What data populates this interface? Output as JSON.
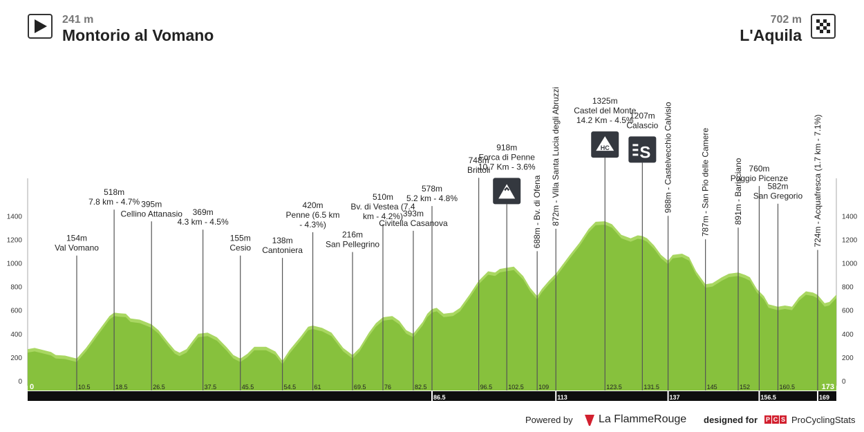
{
  "start": {
    "altitude": "241 m",
    "town": "Montorio al Vomano",
    "icon": "play-icon"
  },
  "finish": {
    "altitude": "702 m",
    "town": "L'Aquila",
    "icon": "checkered-flag-icon"
  },
  "footer": {
    "powered_by": "Powered by",
    "brand": "La FlammeRouge",
    "designed_for": "designed for",
    "pcs_badge": [
      "P",
      "C",
      "S"
    ],
    "pcs_name": "ProCyclingStats"
  },
  "colors": {
    "profile_dark": "#87c13d",
    "profile_light": "#a9d762",
    "bar": "#0e0e0e",
    "line": "#555555",
    "badge": "#34383f"
  },
  "chart_data": {
    "type": "area",
    "title": "",
    "xlabel": "",
    "ylabel": "",
    "xlim": [
      0,
      173
    ],
    "ylim": [
      0,
      1400
    ],
    "y_ticks": [
      0,
      200,
      400,
      600,
      800,
      1000,
      1200,
      1400
    ],
    "x_labels_left": {
      "value": 0,
      "text": "0"
    },
    "x_labels_right": {
      "value": 173,
      "text": "173"
    },
    "km_marks": [
      {
        "km": 10.5,
        "label": "10.5"
      },
      {
        "km": 18.5,
        "label": "18.5"
      },
      {
        "km": 26.5,
        "label": "26.5"
      },
      {
        "km": 37.5,
        "label": "37.5"
      },
      {
        "km": 45.5,
        "label": "45.5"
      },
      {
        "km": 54.5,
        "label": "54.5"
      },
      {
        "km": 61,
        "label": "61"
      },
      {
        "km": 69.5,
        "label": "69.5"
      },
      {
        "km": 76,
        "label": "76"
      },
      {
        "km": 82.5,
        "label": "82.5"
      },
      {
        "km": 96.5,
        "label": "96.5"
      },
      {
        "km": 102.5,
        "label": "102.5"
      },
      {
        "km": 109,
        "label": "109"
      },
      {
        "km": 123.5,
        "label": "123.5"
      },
      {
        "km": 131.5,
        "label": "131.5"
      },
      {
        "km": 145,
        "label": "145"
      },
      {
        "km": 152,
        "label": "152"
      },
      {
        "km": 160.5,
        "label": "160.5"
      }
    ],
    "bar_marks": [
      {
        "km": 86.5,
        "label": "86.5"
      },
      {
        "km": 113,
        "label": "113"
      },
      {
        "km": 137,
        "label": "137"
      },
      {
        "km": 156.5,
        "label": "156.5"
      },
      {
        "km": 169,
        "label": "169"
      }
    ],
    "profile": [
      [
        0,
        240
      ],
      [
        1.5,
        250
      ],
      [
        3,
        235
      ],
      [
        5,
        215
      ],
      [
        6,
        190
      ],
      [
        8,
        185
      ],
      [
        10.5,
        160
      ],
      [
        12.5,
        250
      ],
      [
        14.5,
        360
      ],
      [
        16,
        440
      ],
      [
        17.5,
        520
      ],
      [
        18.5,
        550
      ],
      [
        19.5,
        545
      ],
      [
        21,
        540
      ],
      [
        22,
        500
      ],
      [
        24,
        490
      ],
      [
        26.5,
        450
      ],
      [
        28,
        400
      ],
      [
        30,
        300
      ],
      [
        31.5,
        230
      ],
      [
        32.5,
        210
      ],
      [
        34,
        240
      ],
      [
        35.5,
        320
      ],
      [
        36.5,
        370
      ],
      [
        38.5,
        380
      ],
      [
        40.5,
        340
      ],
      [
        42.5,
        260
      ],
      [
        44,
        190
      ],
      [
        45.5,
        160
      ],
      [
        47,
        200
      ],
      [
        48.5,
        260
      ],
      [
        51,
        260
      ],
      [
        53,
        220
      ],
      [
        54.5,
        140
      ],
      [
        56,
        230
      ],
      [
        58.5,
        350
      ],
      [
        60,
        430
      ],
      [
        61,
        440
      ],
      [
        63,
        420
      ],
      [
        65,
        380
      ],
      [
        67.5,
        250
      ],
      [
        69.5,
        190
      ],
      [
        71,
        250
      ],
      [
        73,
        380
      ],
      [
        74.5,
        460
      ],
      [
        76,
        510
      ],
      [
        78,
        520
      ],
      [
        79.5,
        480
      ],
      [
        81,
        400
      ],
      [
        82.5,
        370
      ],
      [
        84.5,
        470
      ],
      [
        85.5,
        540
      ],
      [
        86.5,
        580
      ],
      [
        87.5,
        590
      ],
      [
        89,
        540
      ],
      [
        91,
        550
      ],
      [
        92.5,
        590
      ],
      [
        94.5,
        700
      ],
      [
        96.5,
        820
      ],
      [
        98.5,
        900
      ],
      [
        100,
        890
      ],
      [
        101,
        920
      ],
      [
        102.5,
        930
      ],
      [
        104,
        940
      ],
      [
        106,
        860
      ],
      [
        107.5,
        760
      ],
      [
        109,
        690
      ],
      [
        110,
        750
      ],
      [
        111.5,
        820
      ],
      [
        113,
        880
      ],
      [
        114.5,
        960
      ],
      [
        116,
        1040
      ],
      [
        118,
        1140
      ],
      [
        120,
        1260
      ],
      [
        121.5,
        1320
      ],
      [
        123.5,
        1325
      ],
      [
        125,
        1300
      ],
      [
        127,
        1210
      ],
      [
        129,
        1180
      ],
      [
        130.5,
        1205
      ],
      [
        131.5,
        1200
      ],
      [
        132.5,
        1180
      ],
      [
        134,
        1120
      ],
      [
        135.5,
        1040
      ],
      [
        137,
        990
      ],
      [
        138,
        1040
      ],
      [
        140,
        1050
      ],
      [
        141.5,
        1020
      ],
      [
        143,
        900
      ],
      [
        145,
        790
      ],
      [
        146.5,
        800
      ],
      [
        148.5,
        850
      ],
      [
        150,
        880
      ],
      [
        152,
        890
      ],
      [
        153.5,
        870
      ],
      [
        154.5,
        850
      ],
      [
        156,
        750
      ],
      [
        157.5,
        690
      ],
      [
        158.5,
        620
      ],
      [
        160.5,
        600
      ],
      [
        162,
        610
      ],
      [
        163.5,
        600
      ],
      [
        165,
        680
      ],
      [
        166.5,
        730
      ],
      [
        168,
        720
      ],
      [
        169,
        700
      ],
      [
        170.5,
        630
      ],
      [
        171.5,
        640
      ],
      [
        173,
        702
      ]
    ],
    "annotations": [
      {
        "km": 10.5,
        "y": 160,
        "style": "h",
        "lines": [
          "154m",
          "Val Vomano"
        ]
      },
      {
        "km": 18.5,
        "y": 550,
        "style": "h",
        "lines": [
          "518m",
          "7.8 km - 4.7%"
        ]
      },
      {
        "km": 26.5,
        "y": 450,
        "style": "h",
        "lines": [
          "395m",
          "Cellino Attanasio"
        ]
      },
      {
        "km": 37.5,
        "y": 380,
        "style": "h",
        "lines": [
          "369m",
          "4.3 km - 4.5%"
        ]
      },
      {
        "km": 45.5,
        "y": 160,
        "style": "h",
        "lines": [
          "155m",
          "Cesio"
        ]
      },
      {
        "km": 54.5,
        "y": 140,
        "style": "h",
        "lines": [
          "138m",
          "Cantoniera"
        ]
      },
      {
        "km": 61,
        "y": 440,
        "style": "h",
        "lines": [
          "420m",
          "Penne (6.5 km",
          "- 4.3%)"
        ]
      },
      {
        "km": 69.5,
        "y": 190,
        "style": "h",
        "lines": [
          "216m",
          "San Pellegrino"
        ]
      },
      {
        "km": 76,
        "y": 510,
        "style": "h",
        "lines": [
          "510m",
          "Bv. di Vestea (7.4",
          "km - 4.2%)"
        ]
      },
      {
        "km": 82.5,
        "y": 370,
        "style": "h",
        "lines": [
          "393m",
          "Civitella Casanova"
        ]
      },
      {
        "km": 86.5,
        "y": 580,
        "style": "h",
        "lines": [
          "578m",
          "5.2 km - 4.8%"
        ]
      },
      {
        "km": 96.5,
        "y": 820,
        "style": "h",
        "lines": [
          "748m",
          "Brittoli"
        ]
      },
      {
        "km": 102.5,
        "y": 930,
        "style": "h",
        "lines": [
          "918m",
          "Forca di Penne",
          "10.7 Km - 3.6%"
        ],
        "badge": "mountain-icon"
      },
      {
        "km": 109,
        "y": 690,
        "style": "v",
        "text": "688m - Bv. di Ofena"
      },
      {
        "km": 113,
        "y": 880,
        "style": "v",
        "text": "872m - Villa Santa Lucia degli Abruzzi"
      },
      {
        "km": 123.5,
        "y": 1325,
        "style": "h",
        "lines": [
          "1325m",
          "Castel del Monte",
          "14.2 Km - 4.5%"
        ],
        "badge": "hc-icon",
        "badge_text": "HC"
      },
      {
        "km": 131.5,
        "y": 1200,
        "style": "h",
        "lines": [
          "1207m",
          "Calascio"
        ],
        "badge": "sprint-icon",
        "badge_text": "S"
      },
      {
        "km": 137,
        "y": 990,
        "style": "v",
        "text": "988m - Castelvecchio Calvisio"
      },
      {
        "km": 145,
        "y": 790,
        "style": "v",
        "text": "787m - San Pio delle Camere"
      },
      {
        "km": 152,
        "y": 890,
        "style": "v",
        "text": "891m - Barisciano"
      },
      {
        "km": 156.5,
        "y": 750,
        "style": "h",
        "lines": [
          "760m",
          "Poggio Picenze"
        ]
      },
      {
        "km": 160.5,
        "y": 600,
        "style": "h",
        "lines": [
          "582m",
          "San Gregorio"
        ]
      },
      {
        "km": 169,
        "y": 700,
        "style": "v",
        "text": "724m - Acquafresca (1.7 km - 7.1%)"
      }
    ]
  }
}
